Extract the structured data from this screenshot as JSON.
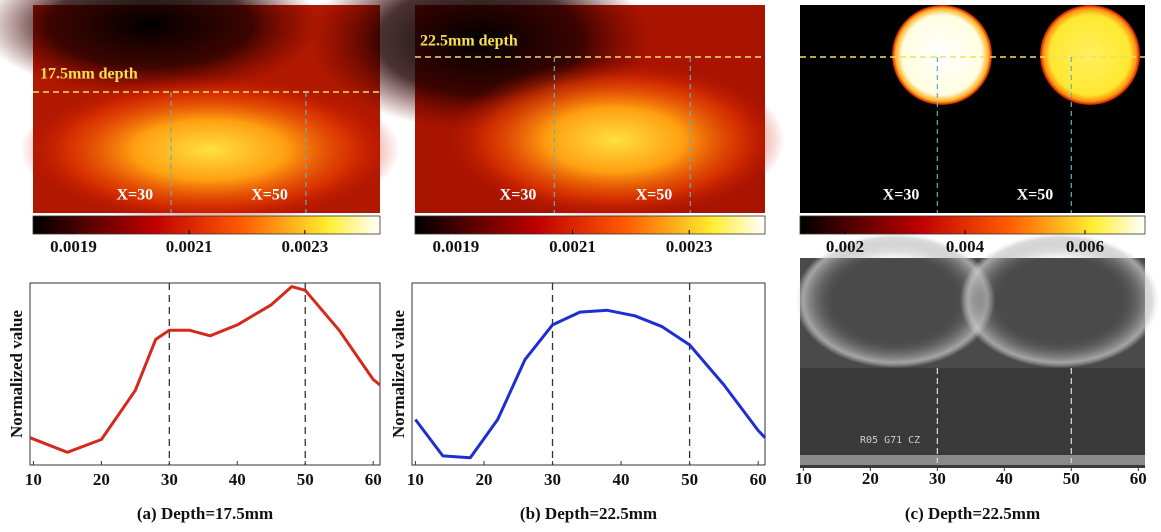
{
  "chart_data": [
    {
      "type": "heatmap",
      "annotation": "17.5mm depth",
      "markers": [
        {
          "value": 30,
          "label": "X=30"
        },
        {
          "value": 50,
          "label": "X=50"
        }
      ],
      "xlim": [
        9.5,
        61
      ],
      "clim": [
        0.00183,
        0.00243
      ],
      "cticks": [
        0.0019,
        0.0021,
        0.0023
      ]
    },
    {
      "type": "heatmap",
      "annotation": "22.5mm depth",
      "markers": [
        {
          "value": 30,
          "label": "X=30"
        },
        {
          "value": 50,
          "label": "X=50"
        }
      ],
      "xlim": [
        9.5,
        61
      ],
      "clim": [
        0.00183,
        0.00243
      ],
      "cticks": [
        0.0019,
        0.0021,
        0.0023
      ]
    },
    {
      "type": "heatmap",
      "markers": [
        {
          "value": 30,
          "label": "X=30"
        },
        {
          "value": 50,
          "label": "X=50"
        }
      ],
      "xlim": [
        9.5,
        61
      ],
      "clim": [
        0.00125,
        0.007
      ],
      "cticks": [
        0.002,
        0.004,
        0.006
      ]
    },
    {
      "type": "line",
      "title": "(a) Depth=17.5mm",
      "y_label": "Normalized value",
      "x": [
        9.5,
        15,
        20,
        25,
        28,
        30,
        33,
        36,
        40,
        45,
        48,
        50,
        55,
        60,
        61
      ],
      "series": [
        {
          "color": "#d42a1e",
          "values": [
            0.15,
            0.07,
            0.14,
            0.41,
            0.69,
            0.74,
            0.74,
            0.71,
            0.77,
            0.88,
            0.98,
            0.96,
            0.74,
            0.47,
            0.44
          ]
        }
      ],
      "xlim": [
        9.5,
        61
      ],
      "xticks": [
        10,
        20,
        30,
        40,
        50,
        60
      ],
      "ylim": [
        0,
        1
      ],
      "markers": [
        30,
        50
      ]
    },
    {
      "type": "line",
      "title": "(b) Depth=22.5mm",
      "y_label": "Normalized value",
      "x": [
        10,
        14,
        18,
        22,
        26,
        30,
        34,
        38,
        42,
        46,
        50,
        55,
        60,
        61
      ],
      "series": [
        {
          "color": "#1f2ed0",
          "values": [
            0.25,
            0.05,
            0.04,
            0.25,
            0.58,
            0.77,
            0.84,
            0.85,
            0.82,
            0.76,
            0.66,
            0.44,
            0.19,
            0.15
          ]
        }
      ],
      "xlim": [
        9.5,
        61
      ],
      "xticks": [
        10,
        20,
        30,
        40,
        50,
        60
      ],
      "ylim": [
        0,
        1
      ],
      "markers": [
        30,
        50
      ]
    },
    {
      "type": "ultrasound",
      "title": "(c) Depth=22.5mm",
      "overlay_text": "R05 G71 CZ",
      "xlim": [
        9.5,
        61
      ],
      "xticks": [
        10,
        20,
        30,
        40,
        50,
        60
      ],
      "markers": [
        30,
        50
      ]
    }
  ]
}
